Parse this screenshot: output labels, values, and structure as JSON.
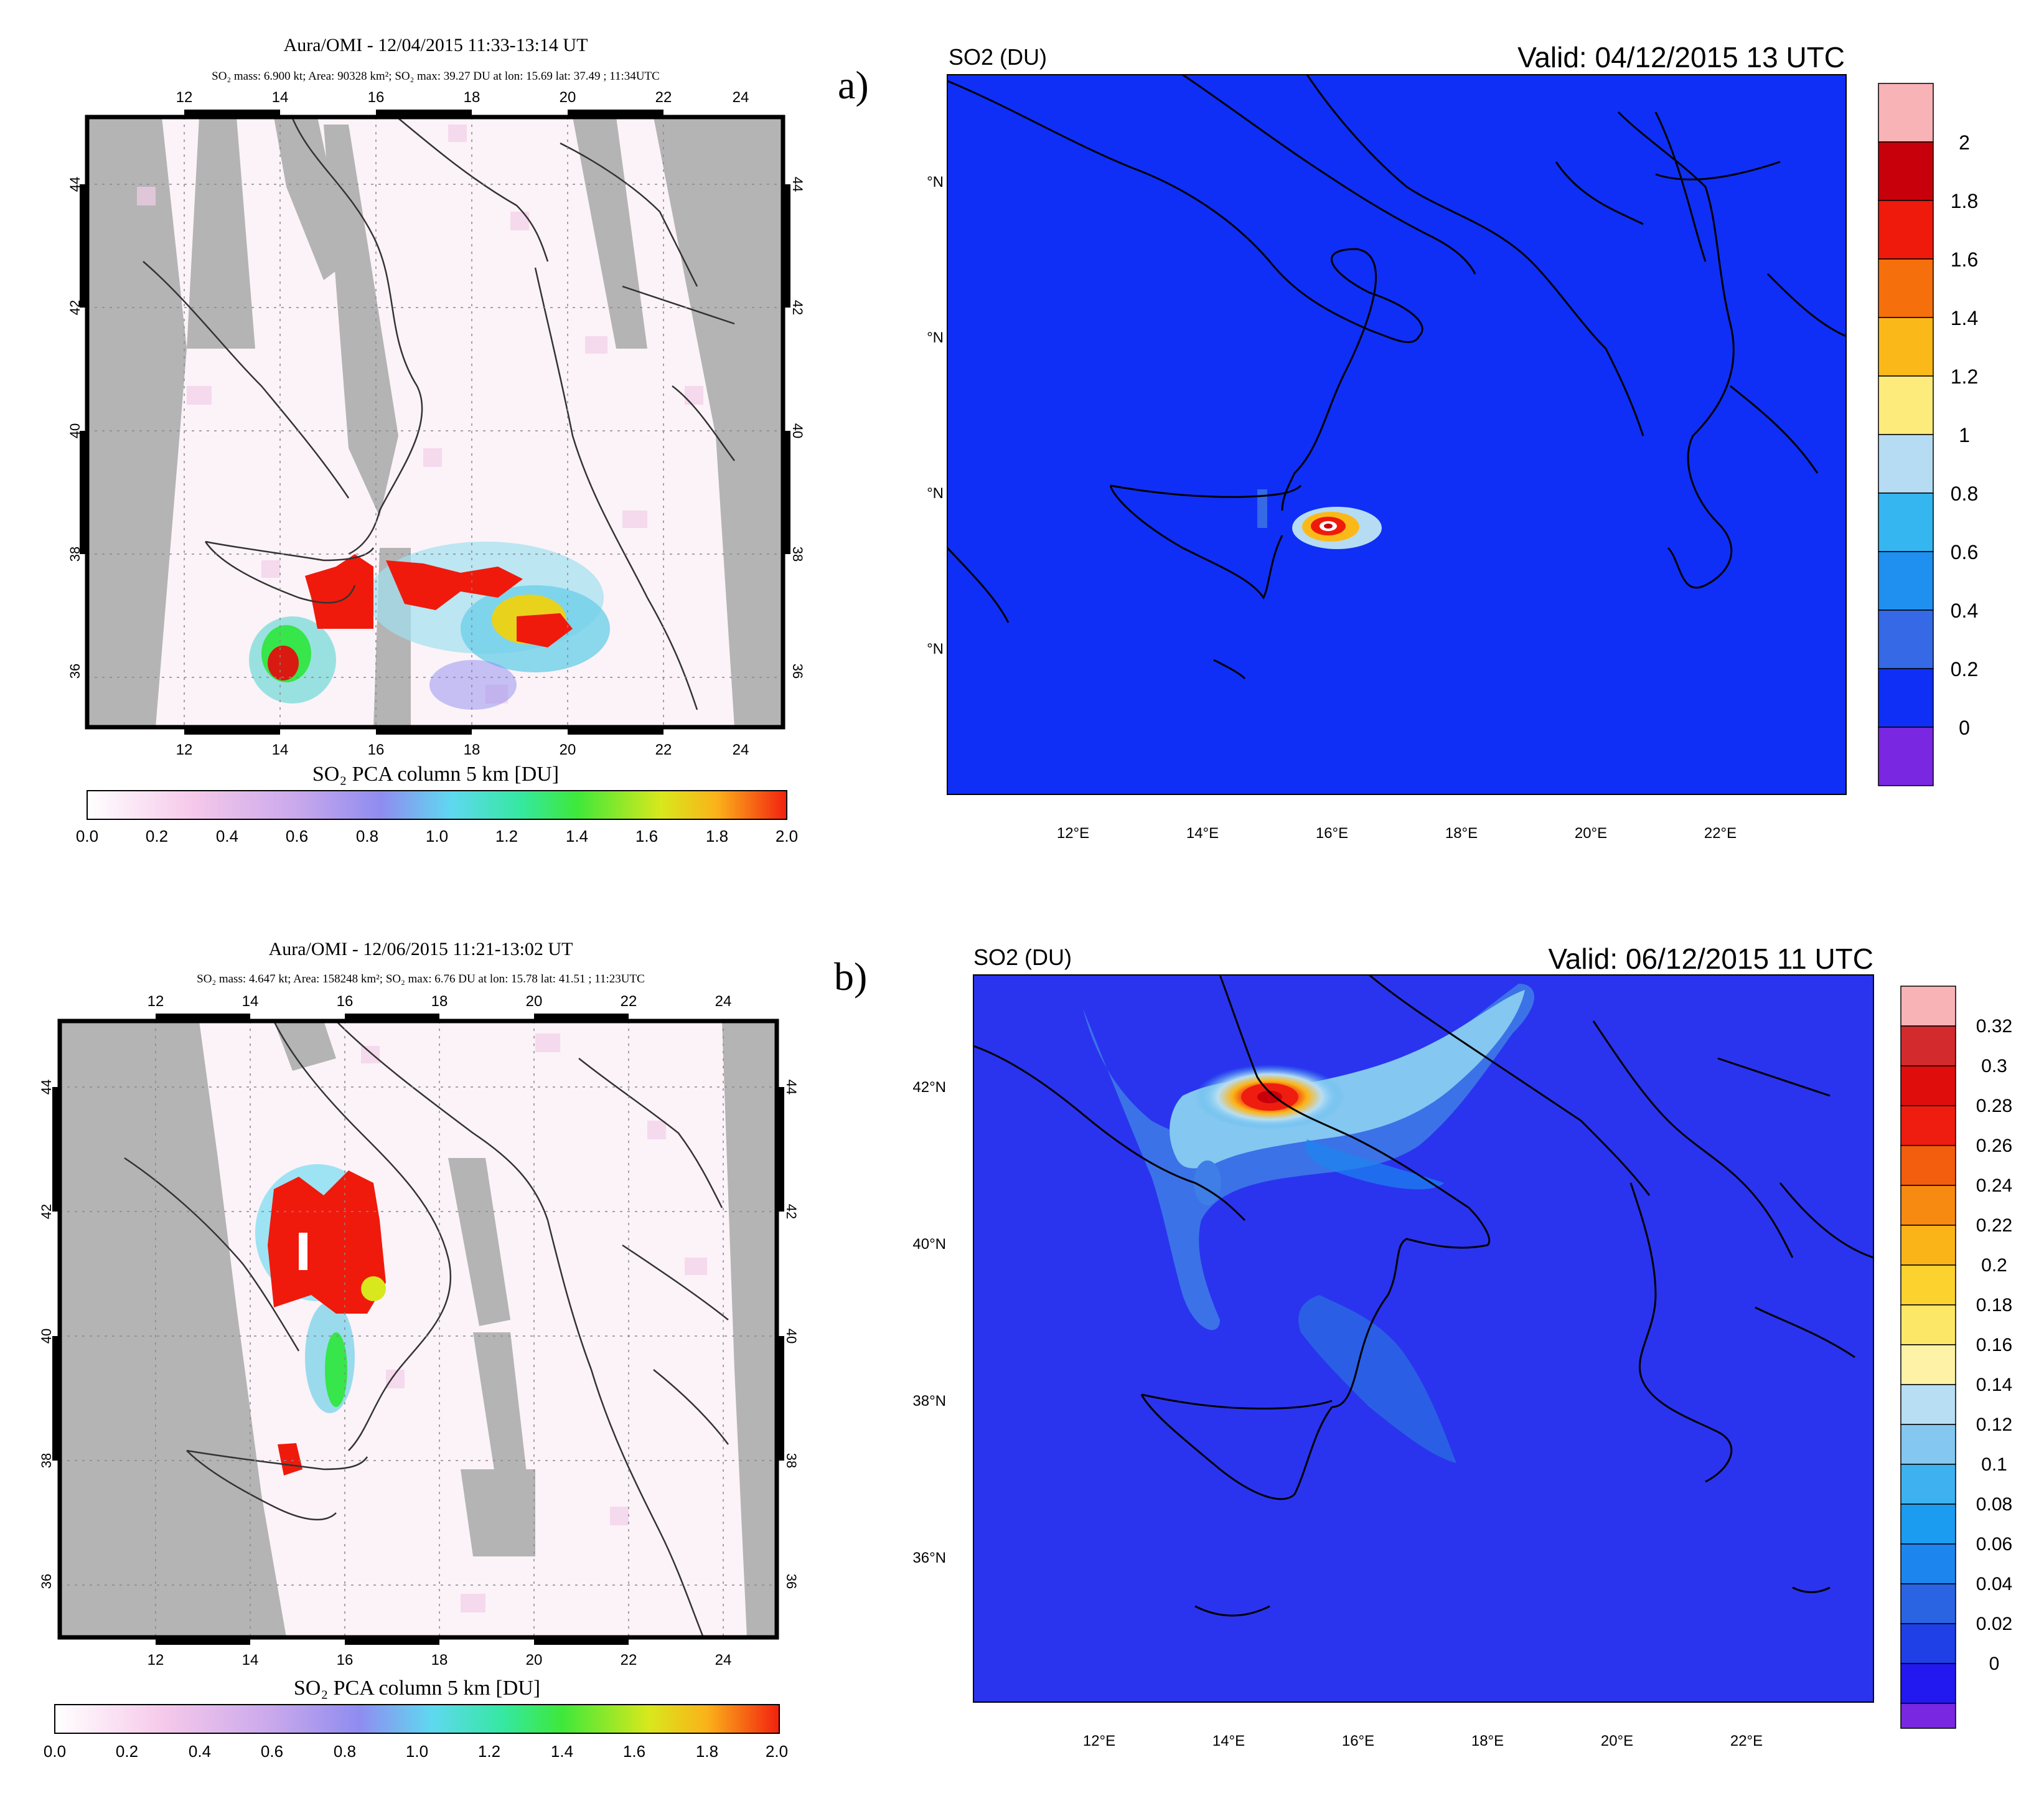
{
  "panels": [
    {
      "panel_label": "a)",
      "omi": {
        "title": "Aura/OMI - 12/04/2015 11:33-13:14 UT",
        "subtitle": "SO₂ mass: 6.900 kt; Area: 90328 km²; SO₂ max: 39.27 DU at lon: 15.69 lat: 37.49 ; 11:34UTC",
        "lon_ticks": [
          "12",
          "14",
          "16",
          "18",
          "20",
          "22",
          "24"
        ],
        "lat_ticks": [
          "44",
          "42",
          "40",
          "38",
          "36"
        ],
        "colorbar_title": "SO₂ PCA column 5 km [DU]",
        "colorbar_ticks": [
          "0.0",
          "0.2",
          "0.4",
          "0.6",
          "0.8",
          "1.0",
          "1.2",
          "1.4",
          "1.6",
          "1.8",
          "2.0"
        ]
      },
      "model": {
        "variable_label": "SO2 (DU)",
        "valid_label": "Valid: 04/12/2015  13 UTC",
        "lon_ticks": [
          "12°E",
          "14°E",
          "16°E",
          "18°E",
          "20°E",
          "22°E"
        ],
        "lat_ticks": [
          "°N",
          "°N",
          "°N",
          "°N"
        ],
        "colorbar_ticks": [
          "2",
          "1.8",
          "1.6",
          "1.4",
          "1.2",
          "1",
          "0.8",
          "0.6",
          "0.4",
          "0.2",
          "0"
        ]
      }
    },
    {
      "panel_label": "b)",
      "omi": {
        "title": "Aura/OMI - 12/06/2015 11:21-13:02 UT",
        "subtitle": "SO₂ mass: 4.647 kt; Area: 158248 km²; SO₂ max: 6.76 DU at lon: 15.78 lat: 41.51 ; 11:23UTC",
        "lon_ticks": [
          "12",
          "14",
          "16",
          "18",
          "20",
          "22",
          "24"
        ],
        "lat_ticks": [
          "44",
          "42",
          "40",
          "38",
          "36"
        ],
        "colorbar_title": "SO₂ PCA column 5 km [DU]",
        "colorbar_ticks": [
          "0.0",
          "0.2",
          "0.4",
          "0.6",
          "0.8",
          "1.0",
          "1.2",
          "1.4",
          "1.6",
          "1.8",
          "2.0"
        ]
      },
      "model": {
        "variable_label": "SO2 (DU)",
        "valid_label": "Valid: 06/12/2015  11 UTC",
        "lon_ticks": [
          "12°E",
          "14°E",
          "16°E",
          "18°E",
          "20°E",
          "22°E"
        ],
        "lat_ticks": [
          "42°N",
          "40°N",
          "38°N",
          "36°N"
        ],
        "colorbar_ticks": [
          "0.32",
          "0.3",
          "0.28",
          "0.26",
          "0.24",
          "0.22",
          "0.2",
          "0.18",
          "0.16",
          "0.14",
          "0.12",
          "0.1",
          "0.08",
          "0.06",
          "0.04",
          "0.02",
          "0"
        ]
      }
    }
  ],
  "colors": {
    "omi_background": "#fbf3f8",
    "omi_gap_gray": "#b4b4b4",
    "model_background": "#1a2ef0",
    "model_scale": [
      "#f7b3b6",
      "#c8000b",
      "#ef1a0c",
      "#f5700d",
      "#fbb919",
      "#fdeb7c",
      "#b6dcf3",
      "#35b6f1",
      "#1f8ff0",
      "#3569e6",
      "#0f2ff6",
      "#7a27e1"
    ],
    "model_scale_b": [
      "#f7b3b6",
      "#d32a2e",
      "#e00d0d",
      "#ef1d0f",
      "#f25e0e",
      "#f78a10",
      "#fbb418",
      "#fcd22f",
      "#fde766",
      "#fef2a6",
      "#b8def3",
      "#84c7f0",
      "#3eb2f1",
      "#1c9cf0",
      "#1d85ee",
      "#2a64e3",
      "#1f3fe7",
      "#2218f0",
      "#7a27e1"
    ]
  }
}
